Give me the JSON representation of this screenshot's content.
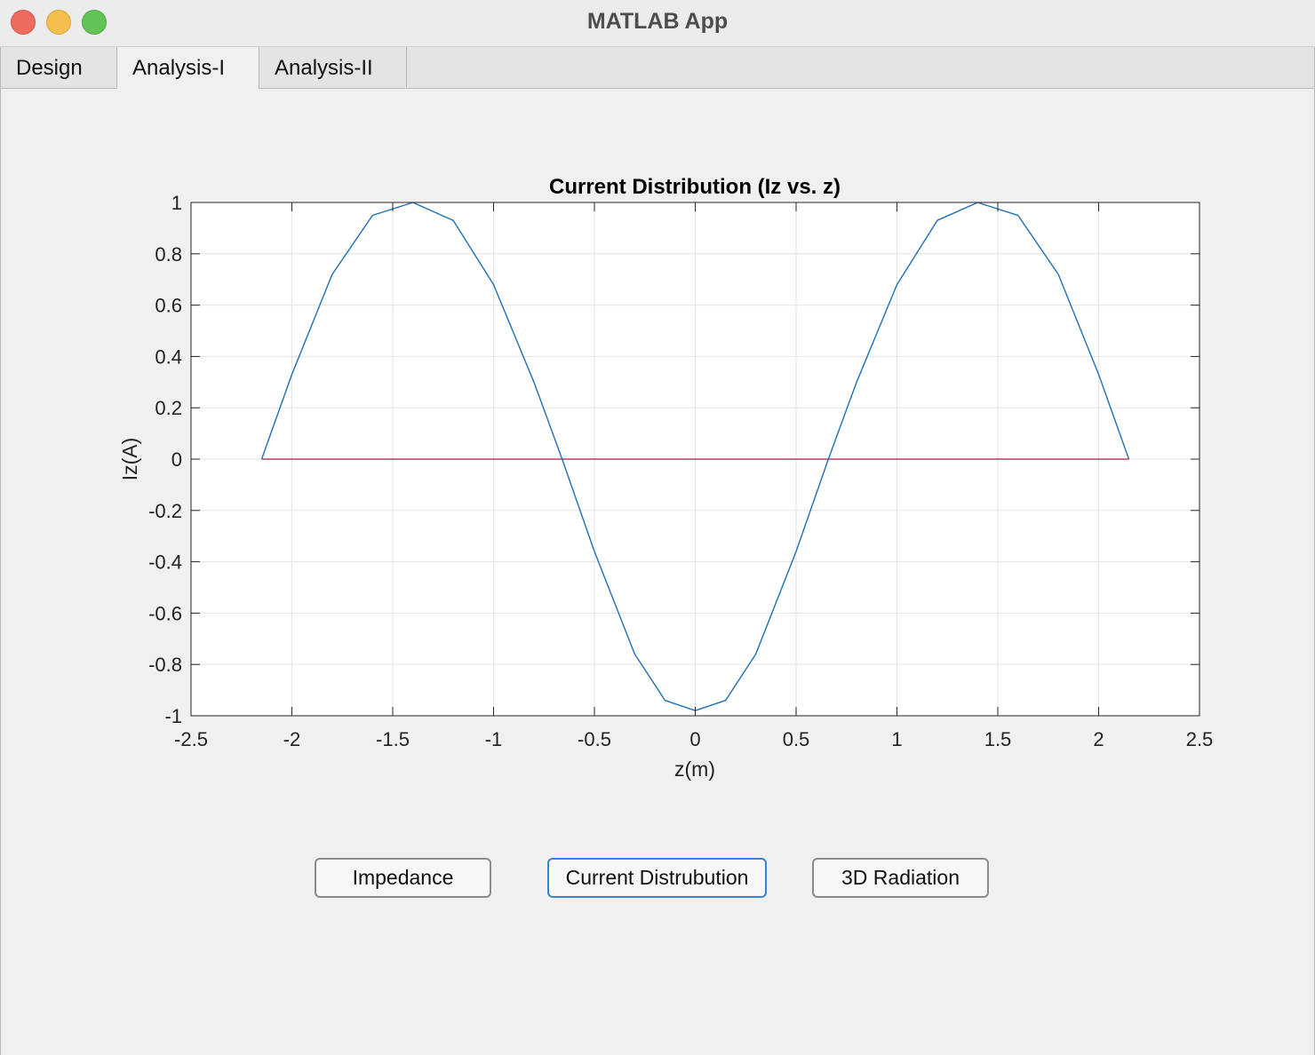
{
  "window": {
    "title": "MATLAB App"
  },
  "tabs": [
    {
      "label": "Design"
    },
    {
      "label": "Analysis-I"
    },
    {
      "label": "Analysis-II"
    }
  ],
  "selected_tab": "Analysis-I",
  "buttons": {
    "impedance": "Impedance",
    "current": "Current Distrubution",
    "radiation": "3D Radiation"
  },
  "colors": {
    "series_current": "#1f6fb2",
    "series_zero": "#b5425e"
  },
  "chart_data": {
    "type": "line",
    "title": "Current Distribution (Iz vs. z)",
    "xlabel": "z(m)",
    "ylabel": "Iz(A)",
    "xlim": [
      -2.5,
      2.5
    ],
    "ylim": [
      -1,
      1
    ],
    "grid": true,
    "xticks": [
      -2.5,
      -2,
      -1.5,
      -1,
      -0.5,
      0,
      0.5,
      1,
      1.5,
      2,
      2.5
    ],
    "yticks": [
      -1,
      -0.8,
      -0.6,
      -0.4,
      -0.2,
      0,
      0.2,
      0.4,
      0.6,
      0.8,
      1
    ],
    "xtick_labels": [
      "-2.5",
      "-2",
      "-1.5",
      "-1",
      "-0.5",
      "0",
      "0.5",
      "1",
      "1.5",
      "2",
      "2.5"
    ],
    "ytick_labels": [
      "-1",
      "-0.8",
      "-0.6",
      "-0.4",
      "-0.2",
      "0",
      "0.2",
      "0.4",
      "0.6",
      "0.8",
      "1"
    ],
    "series": [
      {
        "x": [
          -2.15,
          -2.0,
          -1.8,
          -1.6,
          -1.4,
          -1.2,
          -1.0,
          -0.8,
          -0.66,
          -0.5,
          -0.3,
          -0.15,
          0.0,
          0.15,
          0.3,
          0.5,
          0.66,
          0.8,
          1.0,
          1.2,
          1.4,
          1.6,
          1.8,
          2.0,
          2.15
        ],
        "y": [
          0.0,
          0.33,
          0.72,
          0.95,
          1.0,
          0.93,
          0.68,
          0.3,
          0.0,
          -0.36,
          -0.76,
          -0.94,
          -0.98,
          -0.94,
          -0.76,
          -0.36,
          0.0,
          0.3,
          0.68,
          0.93,
          1.0,
          0.95,
          0.72,
          0.33,
          0.0
        ]
      },
      {
        "x": [
          -2.15,
          2.15
        ],
        "y": [
          0,
          0
        ]
      }
    ]
  }
}
